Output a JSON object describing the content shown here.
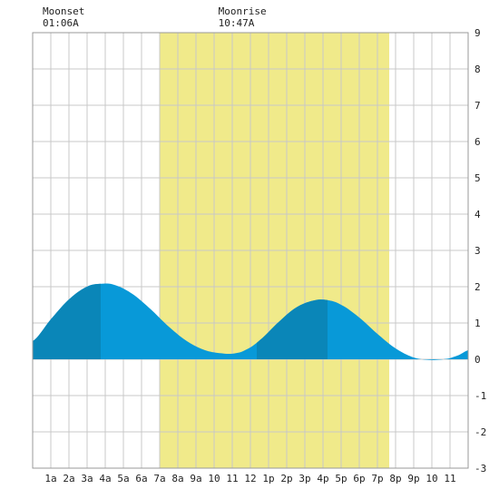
{
  "chart_data": {
    "type": "area",
    "title": "",
    "xlabel": "",
    "ylabel": "",
    "xlim": [
      0,
      24
    ],
    "ylim": [
      -3,
      9
    ],
    "y_ticks": [
      -3,
      -2,
      -1,
      0,
      1,
      2,
      3,
      4,
      5,
      6,
      7,
      8,
      9
    ],
    "x_tick_labels": [
      "1a",
      "2a",
      "3a",
      "4a",
      "5a",
      "6a",
      "7a",
      "8a",
      "9a",
      "10",
      "11",
      "12",
      "1p",
      "2p",
      "3p",
      "4p",
      "5p",
      "6p",
      "7p",
      "8p",
      "9p",
      "10",
      "11"
    ],
    "grid": true,
    "daylight": {
      "start_hour": 7.0,
      "end_hour": 19.65,
      "color": "#f0ea8a"
    },
    "series": [
      {
        "x": [
          0,
          1,
          2,
          3,
          3.75,
          4.5,
          5.5,
          6.5,
          7.5,
          8.5,
          9.5,
          10.5,
          11.1,
          11.7,
          12.5,
          13.5,
          14.5,
          15.5,
          16.25,
          17,
          18,
          19,
          20,
          21,
          22,
          22.9,
          23.5,
          24
        ],
        "values": [
          0.5,
          1.1,
          1.65,
          2.0,
          2.08,
          2.05,
          1.8,
          1.38,
          0.9,
          0.5,
          0.25,
          0.16,
          0.16,
          0.25,
          0.52,
          1.0,
          1.42,
          1.62,
          1.63,
          1.5,
          1.15,
          0.7,
          0.3,
          0.05,
          -0.02,
          0.02,
          0.12,
          0.25
        ]
      }
    ],
    "colors": {
      "dark_fill": "#0a86b8",
      "light_fill": "#0899d8",
      "grid": "#c8c8c8",
      "frame": "#999999"
    },
    "dark_bands": [
      [
        0,
        3.75
      ],
      [
        12.35,
        16.25
      ]
    ],
    "annotations": [
      {
        "label": "Moonset",
        "time": "01:06A",
        "hour": 1.1
      },
      {
        "label": "Moonrise",
        "time": "10:47A",
        "hour": 10.78
      }
    ]
  }
}
